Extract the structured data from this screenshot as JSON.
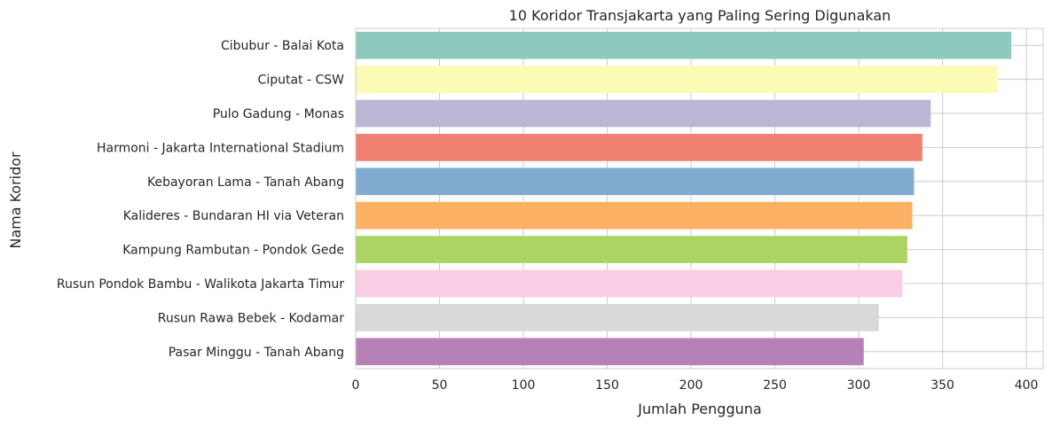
{
  "chart_data": {
    "type": "bar",
    "orientation": "horizontal",
    "title": "10 Koridor Transjakarta yang Paling Sering Digunakan",
    "xlabel": "Jumlah Pengguna",
    "ylabel": "Nama Koridor",
    "xlim": [
      0,
      410
    ],
    "xticks": [
      0,
      50,
      100,
      150,
      200,
      250,
      300,
      350,
      400
    ],
    "grid": "vertical",
    "categories": [
      "Cibubur - Balai Kota",
      "Ciputat - CSW",
      "Pulo Gadung - Monas",
      "Harmoni - Jakarta International Stadium",
      "Kebayoran Lama - Tanah Abang",
      "Kalideres - Bundaran HI via Veteran",
      "Kampung Rambutan - Pondok Gede",
      "Rusun Pondok Bambu - Walikota Jakarta Timur",
      "Rusun Rawa Bebek - Kodamar",
      "Pasar Minggu - Tanah Abang"
    ],
    "values": [
      391,
      383,
      343,
      338,
      333,
      332,
      329,
      326,
      312,
      303
    ],
    "colors": [
      "#8dc9bd",
      "#fbfbb5",
      "#bcb6d5",
      "#f08172",
      "#81abcf",
      "#fbb063",
      "#abd464",
      "#f9cde3",
      "#d9d9d9",
      "#b581b7"
    ]
  }
}
